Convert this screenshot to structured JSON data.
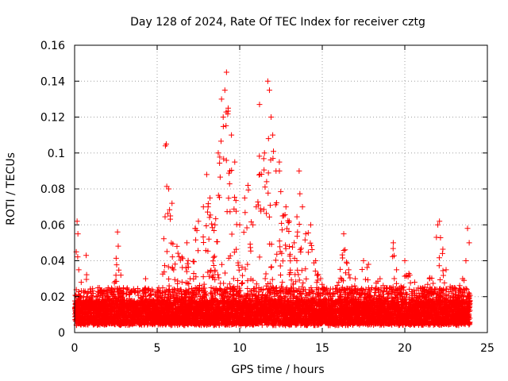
{
  "chart_data": {
    "type": "scatter",
    "title": "Day 128 of 2024, Rate Of TEC Index for receiver cztg",
    "xlabel": "GPS time / hours",
    "ylabel": "ROTI / TECUs",
    "xlim": [
      0,
      25
    ],
    "ylim": [
      0,
      0.16
    ],
    "xticks": [
      "0",
      "5",
      "10",
      "15",
      "20",
      "25"
    ],
    "yticks": [
      "0",
      "0.02",
      "0.04",
      "0.06",
      "0.08",
      "0.1",
      "0.12",
      "0.14",
      "0.16"
    ],
    "grid": true,
    "marker": "+",
    "color": "#ff0000",
    "series": [
      {
        "name": "ROTI",
        "x": [
          0.05,
          0.1,
          0.15,
          0.2,
          0.25,
          0.3,
          0.4,
          0.5,
          0.7,
          0.9,
          1.0,
          1.2,
          1.5,
          1.8,
          2.0,
          2.3,
          2.6,
          2.8,
          3.0,
          3.3,
          3.6,
          4.0,
          4.3,
          4.6,
          5.0,
          5.3,
          5.5,
          5.55,
          5.7,
          5.8,
          5.9,
          6.0,
          6.2,
          6.5,
          6.8,
          7.0,
          7.3,
          7.5,
          7.8,
          8.0,
          8.2,
          8.5,
          8.7,
          8.9,
          9.0,
          9.1,
          9.2,
          9.3,
          9.4,
          9.5,
          9.7,
          10.0,
          10.3,
          10.5,
          10.8,
          11.0,
          11.2,
          11.5,
          11.7,
          11.8,
          11.9,
          12.0,
          12.2,
          12.4,
          12.6,
          12.8,
          13.0,
          13.3,
          13.6,
          13.8,
          14.0,
          14.3,
          14.6,
          14.9,
          15.1,
          15.5,
          16.0,
          16.3,
          16.6,
          17.0,
          17.5,
          17.8,
          18.0,
          18.5,
          19.0,
          19.3,
          19.5,
          19.8,
          20.0,
          20.3,
          20.6,
          21.0,
          21.5,
          22.0,
          22.1,
          22.5,
          23.0,
          23.5,
          23.7,
          23.8,
          23.9
        ],
        "y": [
          0.012,
          0.045,
          0.062,
          0.055,
          0.035,
          0.02,
          0.028,
          0.015,
          0.043,
          0.018,
          0.022,
          0.014,
          0.025,
          0.017,
          0.02,
          0.024,
          0.056,
          0.032,
          0.016,
          0.021,
          0.012,
          0.018,
          0.03,
          0.015,
          0.02,
          0.018,
          0.104,
          0.105,
          0.08,
          0.065,
          0.072,
          0.035,
          0.048,
          0.042,
          0.05,
          0.03,
          0.058,
          0.062,
          0.07,
          0.088,
          0.075,
          0.06,
          0.1,
          0.13,
          0.12,
          0.135,
          0.145,
          0.125,
          0.09,
          0.11,
          0.095,
          0.06,
          0.075,
          0.082,
          0.06,
          0.07,
          0.127,
          0.1,
          0.14,
          0.135,
          0.12,
          0.11,
          0.09,
          0.095,
          0.065,
          0.07,
          0.062,
          0.05,
          0.09,
          0.07,
          0.055,
          0.06,
          0.04,
          0.03,
          0.025,
          0.02,
          0.028,
          0.055,
          0.035,
          0.03,
          0.04,
          0.038,
          0.025,
          0.03,
          0.022,
          0.05,
          0.035,
          0.025,
          0.04,
          0.032,
          0.028,
          0.022,
          0.03,
          0.06,
          0.062,
          0.035,
          0.025,
          0.03,
          0.04,
          0.058,
          0.05
        ]
      }
    ]
  }
}
